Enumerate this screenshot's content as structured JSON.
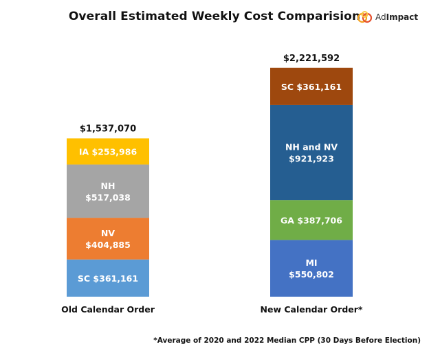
{
  "header": {
    "title": "Overall Estimated Weekly Cost Comparision",
    "logo_prefix": "Ad",
    "logo_bold": "Impact",
    "logo_colors": {
      "ring_a": "#f4a11d",
      "ring_b": "#e5502e",
      "ring_c": "#f7c948"
    }
  },
  "footnote": "*Average of 2020 and 2022 Median CPP (30 Days Before Election)",
  "chart_data": {
    "type": "bar",
    "stacked": true,
    "grid": false,
    "legend": "none",
    "categories": [
      "Old Calendar Order",
      "New Calendar Order*"
    ],
    "totals": [
      "$1,537,070",
      "$2,221,592"
    ],
    "total_values": [
      1537070,
      2221592
    ],
    "stacks": [
      {
        "category": "Old Calendar Order",
        "segments": [
          {
            "label_lines": [
              "SC $361,161"
            ],
            "value": 361161,
            "color": "#5b9bd5"
          },
          {
            "label_lines": [
              "NV",
              "$404,885"
            ],
            "value": 404885,
            "color": "#ed7d31"
          },
          {
            "label_lines": [
              "NH",
              "$517,038"
            ],
            "value": 517038,
            "color": "#a5a5a5"
          },
          {
            "label_lines": [
              "IA  $253,986"
            ],
            "value": 253986,
            "color": "#ffc000"
          }
        ]
      },
      {
        "category": "New Calendar Order*",
        "segments": [
          {
            "label_lines": [
              "MI",
              "$550,802"
            ],
            "value": 550802,
            "color": "#4472c4"
          },
          {
            "label_lines": [
              "GA $387,706"
            ],
            "value": 387706,
            "color": "#70ad47"
          },
          {
            "label_lines": [
              "NH and NV",
              "$921,923"
            ],
            "value": 921923,
            "color": "#255e91"
          },
          {
            "label_lines": [
              "SC $361,161"
            ],
            "value": 361161,
            "color": "#9e480e"
          }
        ]
      }
    ]
  }
}
